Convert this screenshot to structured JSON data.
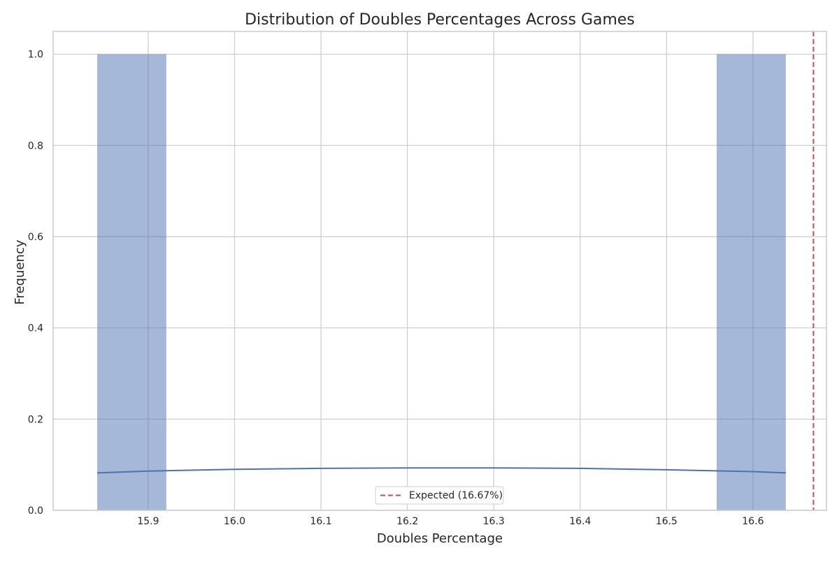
{
  "chart_data": {
    "type": "bar",
    "title": "Distribution of Doubles Percentages Across Games",
    "xlabel": "Doubles Percentage",
    "ylabel": "Frequency",
    "xlim": [
      15.79,
      16.685
    ],
    "ylim": [
      0.0,
      1.05
    ],
    "xticks": [
      15.9,
      16.0,
      16.1,
      16.2,
      16.3,
      16.4,
      16.5,
      16.6
    ],
    "xtick_labels": [
      "15.9",
      "16.0",
      "16.1",
      "16.2",
      "16.3",
      "16.4",
      "16.5",
      "16.6"
    ],
    "yticks": [
      0.0,
      0.2,
      0.4,
      0.6,
      0.8,
      1.0
    ],
    "ytick_labels": [
      "0.0",
      "0.2",
      "0.4",
      "0.6",
      "0.8",
      "1.0"
    ],
    "grid": true,
    "bins": [
      {
        "x0": 15.841,
        "x1": 15.921,
        "count": 1
      },
      {
        "x0": 16.558,
        "x1": 16.638,
        "count": 1
      }
    ],
    "kde": {
      "x": [
        15.841,
        15.9,
        16.0,
        16.1,
        16.2,
        16.25,
        16.3,
        16.4,
        16.5,
        16.6,
        16.638
      ],
      "y": [
        0.082,
        0.086,
        0.09,
        0.092,
        0.093,
        0.093,
        0.093,
        0.092,
        0.089,
        0.085,
        0.082
      ]
    },
    "reference_line": {
      "x": 16.67,
      "label": "Expected (16.67%)"
    },
    "legend": {
      "position": "lower center",
      "entries": [
        "Expected (16.67%)"
      ]
    },
    "colors": {
      "bar": "#4c72b0",
      "kde": "#4c72b0",
      "reference": "#c44e52",
      "grid": "#cccccc",
      "axes_edge": "#cccccc"
    }
  }
}
